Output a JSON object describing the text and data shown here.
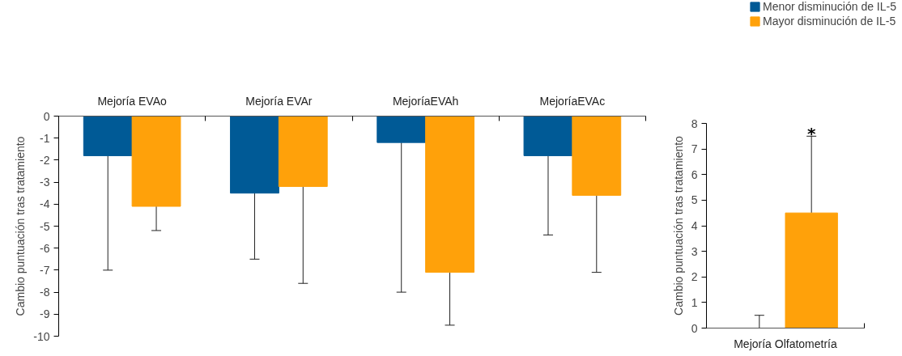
{
  "chart_data": [
    {
      "type": "bar",
      "ylabel": "Cambio puntuación tras tratamiento",
      "categories": [
        "Mejoría EVAo",
        "Mejoría EVAr",
        "MejoríaEVAh",
        "MejoríaEVAc"
      ],
      "ylim": [
        -10,
        0
      ],
      "yticks": [
        0,
        -1,
        -2,
        -3,
        -4,
        -5,
        -6,
        -7,
        -8,
        -9,
        -10
      ],
      "grid": false,
      "series": [
        {
          "color": "#005a96",
          "values": [
            -1.8,
            -3.5,
            -1.2,
            -1.8
          ],
          "errors": [
            [
              -7,
              -1.8
            ],
            [
              -6.5,
              -3.5
            ],
            [
              -8,
              -1.2
            ],
            [
              -5.4,
              -1.8
            ]
          ]
        },
        {
          "color": "#ffa10a",
          "values": [
            -4.1,
            -3.2,
            -7.1,
            -3.6
          ],
          "errors": [
            [
              -5.2,
              -4.1
            ],
            [
              -7.6,
              -3.2
            ],
            [
              -9.5,
              -7.1
            ],
            [
              -7.1,
              -3.6
            ]
          ]
        }
      ]
    },
    {
      "type": "bar",
      "ylabel": "Cambio puntuación tras tratamiento",
      "categories": [
        "Mejoría Olfatometría"
      ],
      "ylim": [
        0,
        8
      ],
      "yticks": [
        0,
        1,
        2,
        3,
        4,
        5,
        6,
        7,
        8
      ],
      "grid": false,
      "legend": "top right",
      "annotations": [
        "*"
      ],
      "series": [
        {
          "name": "Menor disminución de IL-5",
          "color": "#005a96",
          "values": [
            0
          ],
          "errors": [
            [
              0,
              0.5
            ]
          ]
        },
        {
          "name": "Mayor disminución de IL-5",
          "color": "#ffa10a",
          "values": [
            4.5
          ],
          "errors": [
            [
              4.5,
              7.5
            ]
          ]
        }
      ]
    }
  ]
}
